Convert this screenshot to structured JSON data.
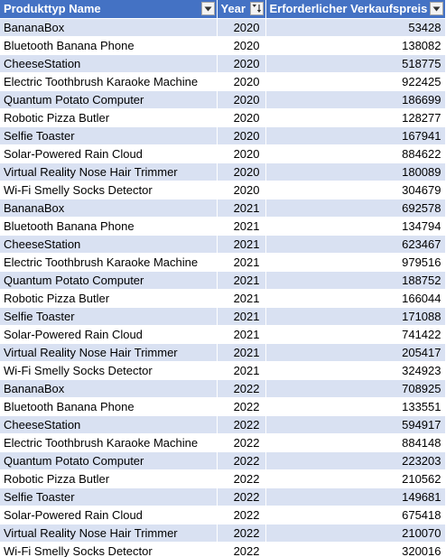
{
  "table": {
    "headers": {
      "product": "Produkttyp Name",
      "year": "Year",
      "price": "Erforderlicher Verkaufspreis"
    },
    "header_icons": {
      "product": "filter-dropdown-icon",
      "year": "sort-ascending-filter-icon",
      "price": "filter-dropdown-icon"
    },
    "colors": {
      "header_bg": "#4472c4",
      "band_bg": "#d9e1f2",
      "plain_bg": "#ffffff"
    },
    "rows": [
      {
        "product": "BananaBox",
        "year": "2020",
        "price": "53428"
      },
      {
        "product": "Bluetooth Banana Phone",
        "year": "2020",
        "price": "138082"
      },
      {
        "product": "CheeseStation",
        "year": "2020",
        "price": "518775"
      },
      {
        "product": "Electric Toothbrush Karaoke Machine",
        "year": "2020",
        "price": "922425"
      },
      {
        "product": "Quantum Potato Computer",
        "year": "2020",
        "price": "186699"
      },
      {
        "product": "Robotic Pizza Butler",
        "year": "2020",
        "price": "128277"
      },
      {
        "product": "Selfie Toaster",
        "year": "2020",
        "price": "167941"
      },
      {
        "product": "Solar-Powered Rain Cloud",
        "year": "2020",
        "price": "884622"
      },
      {
        "product": "Virtual Reality Nose Hair Trimmer",
        "year": "2020",
        "price": "180089"
      },
      {
        "product": "Wi-Fi Smelly Socks Detector",
        "year": "2020",
        "price": "304679"
      },
      {
        "product": "BananaBox",
        "year": "2021",
        "price": "692578"
      },
      {
        "product": "Bluetooth Banana Phone",
        "year": "2021",
        "price": "134794"
      },
      {
        "product": "CheeseStation",
        "year": "2021",
        "price": "623467"
      },
      {
        "product": "Electric Toothbrush Karaoke Machine",
        "year": "2021",
        "price": "979516"
      },
      {
        "product": "Quantum Potato Computer",
        "year": "2021",
        "price": "188752"
      },
      {
        "product": "Robotic Pizza Butler",
        "year": "2021",
        "price": "166044"
      },
      {
        "product": "Selfie Toaster",
        "year": "2021",
        "price": "171088"
      },
      {
        "product": "Solar-Powered Rain Cloud",
        "year": "2021",
        "price": "741422"
      },
      {
        "product": "Virtual Reality Nose Hair Trimmer",
        "year": "2021",
        "price": "205417"
      },
      {
        "product": "Wi-Fi Smelly Socks Detector",
        "year": "2021",
        "price": "324923"
      },
      {
        "product": "BananaBox",
        "year": "2022",
        "price": "708925"
      },
      {
        "product": "Bluetooth Banana Phone",
        "year": "2022",
        "price": "133551"
      },
      {
        "product": "CheeseStation",
        "year": "2022",
        "price": "594917"
      },
      {
        "product": "Electric Toothbrush Karaoke Machine",
        "year": "2022",
        "price": "884148"
      },
      {
        "product": "Quantum Potato Computer",
        "year": "2022",
        "price": "223203"
      },
      {
        "product": "Robotic Pizza Butler",
        "year": "2022",
        "price": "210562"
      },
      {
        "product": "Selfie Toaster",
        "year": "2022",
        "price": "149681"
      },
      {
        "product": "Solar-Powered Rain Cloud",
        "year": "2022",
        "price": "675418"
      },
      {
        "product": "Virtual Reality Nose Hair Trimmer",
        "year": "2022",
        "price": "210070"
      },
      {
        "product": "Wi-Fi Smelly Socks Detector",
        "year": "2022",
        "price": "320016"
      }
    ]
  }
}
